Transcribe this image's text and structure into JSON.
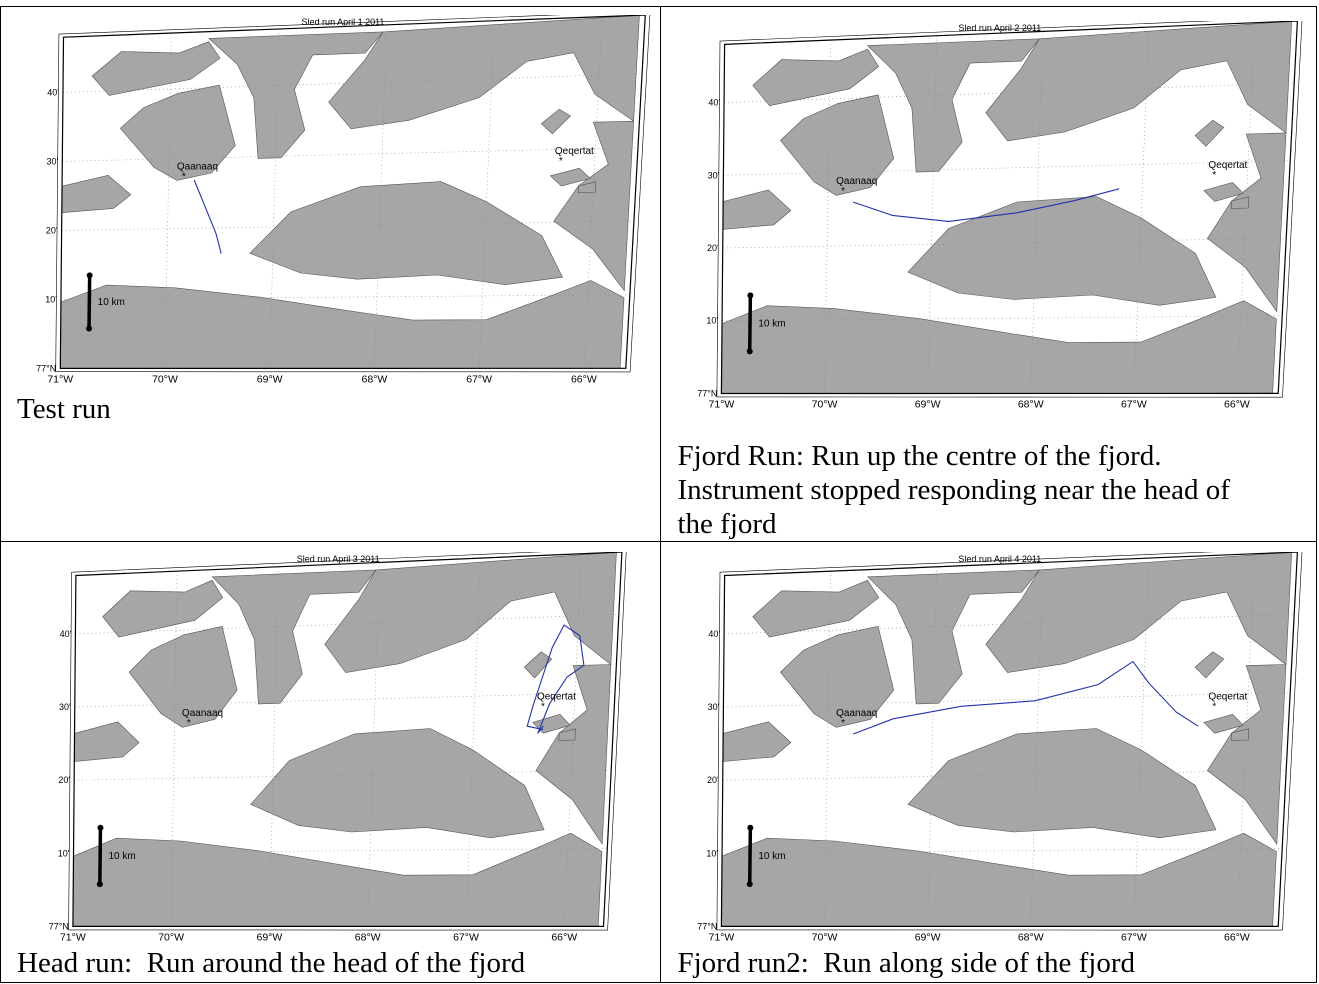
{
  "panels": [
    {
      "id": "april1",
      "title": "Sled run April 1 2011",
      "caption": "Test run",
      "track": "1"
    },
    {
      "id": "april2",
      "title": "Sled run April 2 2011",
      "caption": "Fjord Run: Run up the centre of the fjord.\nInstrument stopped responding near the head of\nthe fjord",
      "track": "2"
    },
    {
      "id": "april3",
      "title": "Sled run April 3 2011",
      "caption": "Head run:  Run around the head of the fjord",
      "track": "3"
    },
    {
      "id": "april4",
      "title": "Sled run April 4 2011",
      "caption": "Fjord run2:  Run along side of the fjord",
      "track": "4"
    }
  ],
  "map": {
    "places": [
      "Qaanaaq",
      "Qeqertat"
    ],
    "lat_ticks": [
      "77°N",
      "10'",
      "20'",
      "30'",
      "40'"
    ],
    "lon_ticks": [
      "71°W",
      "70°W",
      "69°W",
      "68°W",
      "67°W",
      "66°W"
    ],
    "scale_label": "10 km",
    "land_color": "#a6a6a6",
    "water_color": "#ffffff",
    "track_color": "#2233aa"
  }
}
